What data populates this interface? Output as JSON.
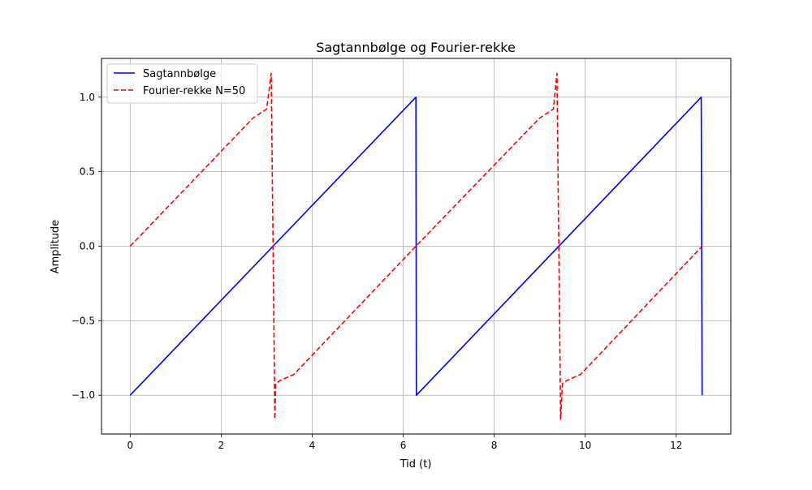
{
  "chart_data": {
    "type": "line",
    "title": "Sagtannbølge og Fourier-rekke",
    "xlabel": "Tid (t)",
    "ylabel": "Amplitude",
    "xlim": [
      -0.63,
      13.2
    ],
    "ylim": [
      -1.26,
      1.26
    ],
    "xticks": [
      0,
      2,
      4,
      6,
      8,
      10,
      12
    ],
    "xtick_labels": [
      "0",
      "2",
      "4",
      "6",
      "8",
      "10",
      "12"
    ],
    "yticks": [
      -1.0,
      -0.5,
      0.0,
      0.5,
      1.0
    ],
    "ytick_labels": [
      "−1.0",
      "−0.5",
      "0.0",
      "0.5",
      "1.0"
    ],
    "grid": true,
    "legend_position": "upper left",
    "series": [
      {
        "name": "Sagtannbølge",
        "color": "#0000ff",
        "style": "solid",
        "x": [
          0,
          6.28,
          6.29,
          12.55,
          12.57
        ],
        "y": [
          -1.0,
          1.0,
          -1.0,
          1.0,
          -1.0
        ]
      },
      {
        "name": "Fourier-rekke N=50",
        "color": "#ff0000",
        "style": "dashed",
        "x": [
          0,
          2.7,
          3.0,
          3.1,
          3.14,
          3.18,
          3.2,
          3.3,
          3.6,
          6.28,
          9.0,
          9.3,
          9.38,
          9.42,
          9.46,
          9.5,
          9.6,
          9.9,
          12.57
        ],
        "y": [
          0,
          0.86,
          0.92,
          1.16,
          0.0,
          -1.16,
          -0.92,
          -0.9,
          -0.86,
          0.0,
          0.86,
          0.92,
          1.16,
          0.0,
          -1.16,
          -0.92,
          -0.9,
          -0.86,
          0.0
        ]
      }
    ]
  }
}
